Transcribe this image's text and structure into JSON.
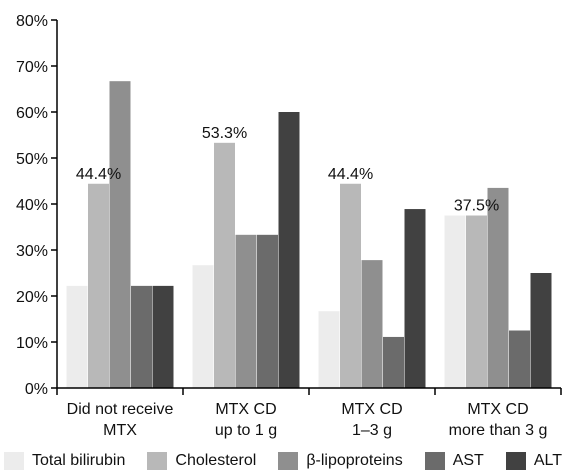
{
  "chart_data": {
    "type": "bar",
    "title": "",
    "xlabel": "",
    "ylabel": "",
    "ylim": [
      0,
      80
    ],
    "yticks": [
      0,
      10,
      20,
      30,
      40,
      50,
      60,
      70,
      80
    ],
    "ytick_suffix": "%",
    "grid": false,
    "legend_position": "bottom",
    "categories": [
      [
        "Did not receive",
        "MTX"
      ],
      [
        "MTX CD",
        "up to 1 g"
      ],
      [
        "MTX CD",
        "1–3 g"
      ],
      [
        "MTX CD",
        "more than 3 g"
      ]
    ],
    "series": [
      {
        "name": "Total bilirubin",
        "color": "#ececec",
        "values": [
          22.2,
          26.7,
          16.7,
          37.5
        ]
      },
      {
        "name": "Cholesterol",
        "color": "#b8b8b8",
        "values": [
          44.4,
          53.3,
          44.4,
          37.5
        ]
      },
      {
        "name": "β-lipoproteins",
        "color": "#8f8f8f",
        "values": [
          66.7,
          33.3,
          27.8,
          43.5
        ]
      },
      {
        "name": "AST",
        "color": "#6b6b6b",
        "values": [
          22.2,
          33.3,
          11.1,
          12.5
        ]
      },
      {
        "name": "ALT",
        "color": "#414141",
        "values": [
          22.2,
          60.0,
          38.9,
          25.0
        ]
      }
    ],
    "annotations": [
      {
        "category": 0,
        "series": 1,
        "text": "44.4%"
      },
      {
        "category": 1,
        "series": 1,
        "text": "53.3%"
      },
      {
        "category": 2,
        "series": 1,
        "text": "44.4%"
      },
      {
        "category": 3,
        "series": 1,
        "text": "37.5%"
      }
    ]
  }
}
